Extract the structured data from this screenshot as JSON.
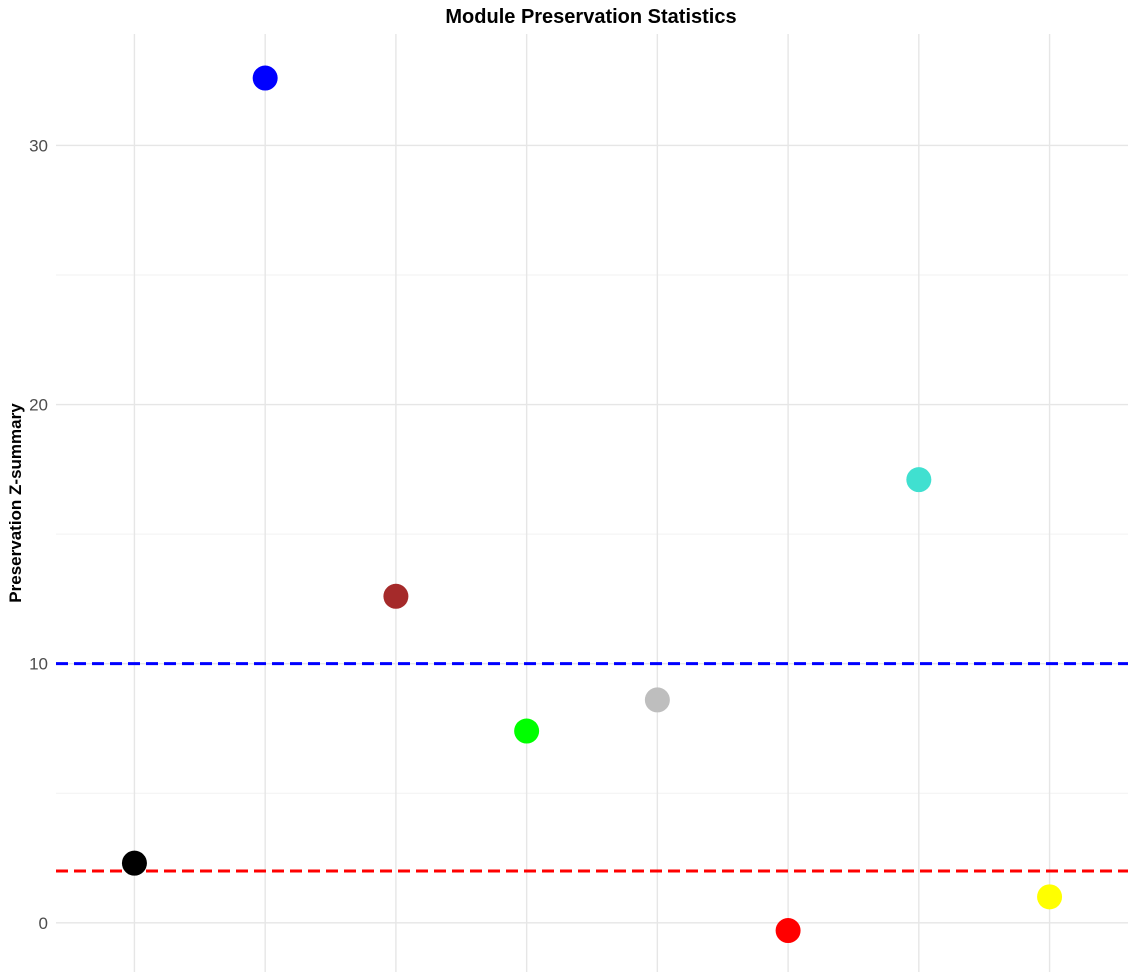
{
  "chart_data": {
    "type": "scatter",
    "title": "Module Preservation Statistics",
    "xlabel": "",
    "ylabel": "Preservation Z-summary",
    "x": [
      1,
      2,
      3,
      4,
      5,
      6,
      7,
      8
    ],
    "y": [
      2.3,
      32.6,
      12.6,
      7.4,
      8.6,
      -0.3,
      17.1,
      1.0
    ],
    "colors": [
      "#000000",
      "#0000ff",
      "#a52a2a",
      "#00ff00",
      "#bebebe",
      "#ff0000",
      "#40e0d0",
      "#ffff00"
    ],
    "ylim": [
      -1.9,
      34.3
    ],
    "yticks": [
      0,
      10,
      20,
      30
    ],
    "yticklabels": [
      "0",
      "10",
      "20",
      "30"
    ],
    "xlim": [
      0.4,
      8.6
    ],
    "reference_lines": [
      {
        "y": 10,
        "color": "#0000ff",
        "style": "dashed"
      },
      {
        "y": 2,
        "color": "#ff0000",
        "style": "dashed"
      }
    ],
    "grid": true,
    "legend": "none"
  }
}
